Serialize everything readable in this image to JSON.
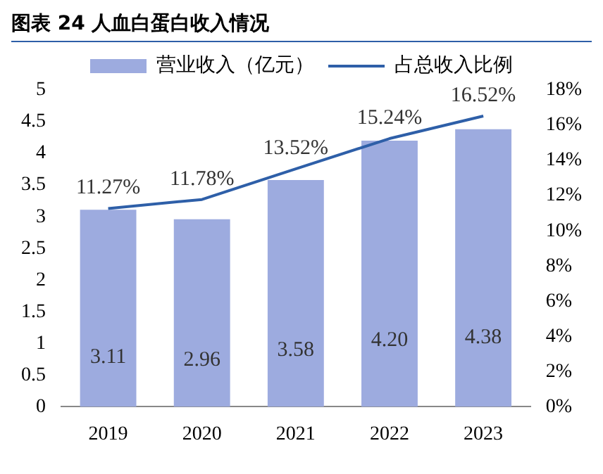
{
  "chart_data": {
    "type": "bar",
    "title": "图表 24 人血白蛋白收入情况",
    "categories": [
      "2019",
      "2020",
      "2021",
      "2022",
      "2023"
    ],
    "series": [
      {
        "name": "营业收入（亿元）",
        "color": "#9dabdf",
        "values": [
          3.11,
          2.96,
          3.58,
          4.2,
          4.38
        ],
        "value_labels": [
          "3.11",
          "2.96",
          "3.58",
          "4.20",
          "4.38"
        ]
      },
      {
        "name": "占总收入比例",
        "type": "line",
        "axis": "y2",
        "color": "#2e5fa8",
        "values": [
          11.27,
          11.78,
          13.52,
          15.24,
          16.52
        ],
        "value_labels": [
          "11.27%",
          "11.78%",
          "13.52%",
          "15.24%",
          "16.52%"
        ]
      }
    ],
    "ylim": [
      0,
      5
    ],
    "yticks": [
      0,
      0.5,
      1,
      1.5,
      2,
      2.5,
      3,
      3.5,
      4,
      4.5,
      5
    ],
    "y2lim": [
      0,
      18
    ],
    "y2ticks": [
      {
        "value": 0,
        "label": "0%"
      },
      {
        "value": 2,
        "label": "2%"
      },
      {
        "value": 4,
        "label": "4%"
      },
      {
        "value": 6,
        "label": "6%"
      },
      {
        "value": 8,
        "label": "8%"
      },
      {
        "value": 10,
        "label": "10%"
      },
      {
        "value": 12,
        "label": "12%"
      },
      {
        "value": 14,
        "label": "14%"
      },
      {
        "value": 16,
        "label": "16%"
      },
      {
        "value": 18,
        "label": "18%"
      }
    ],
    "legend": "top",
    "grid": false,
    "marker": "none"
  }
}
